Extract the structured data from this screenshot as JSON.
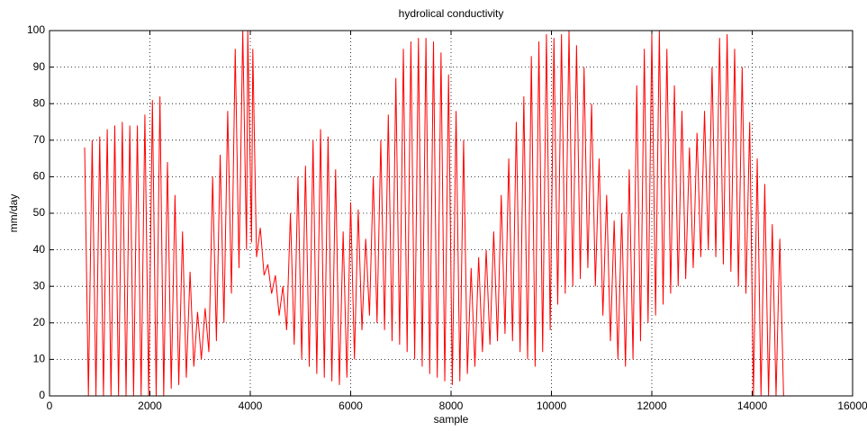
{
  "chart_data": {
    "type": "line",
    "title": "hydrolical conductivity",
    "xlabel": "sample",
    "ylabel": "mm/day",
    "color": "#ff0000",
    "grid": true,
    "xlim": [
      0,
      16000
    ],
    "xticks": [
      0,
      2000,
      4000,
      6000,
      8000,
      10000,
      12000,
      14000,
      16000
    ],
    "ylim": [
      0,
      100
    ],
    "yticks": [
      0,
      10,
      20,
      30,
      40,
      50,
      60,
      70,
      80,
      90,
      100
    ],
    "x": [
      700,
      775,
      850,
      925,
      1000,
      1075,
      1150,
      1225,
      1300,
      1375,
      1450,
      1525,
      1600,
      1675,
      1750,
      1825,
      1900,
      1975,
      2050,
      2125,
      2200,
      2275,
      2350,
      2425,
      2500,
      2575,
      2650,
      2725,
      2800,
      2875,
      2950,
      3025,
      3100,
      3175,
      3250,
      3325,
      3400,
      3475,
      3550,
      3625,
      3700,
      3775,
      3850,
      3925,
      3950,
      4025,
      4050,
      4125,
      4200,
      4275,
      4350,
      4425,
      4500,
      4575,
      4650,
      4725,
      4800,
      4875,
      4950,
      5025,
      5100,
      5175,
      5250,
      5325,
      5400,
      5475,
      5550,
      5625,
      5700,
      5775,
      5850,
      5925,
      6000,
      6075,
      6150,
      6225,
      6300,
      6375,
      6450,
      6525,
      6600,
      6675,
      6750,
      6825,
      6900,
      6975,
      7050,
      7125,
      7200,
      7275,
      7350,
      7425,
      7500,
      7575,
      7650,
      7725,
      7800,
      7875,
      7950,
      8025,
      8100,
      8175,
      8250,
      8325,
      8400,
      8475,
      8550,
      8625,
      8700,
      8775,
      8850,
      8925,
      9000,
      9075,
      9150,
      9225,
      9300,
      9375,
      9450,
      9525,
      9600,
      9675,
      9750,
      9825,
      9900,
      9975,
      10050,
      10125,
      10200,
      10275,
      10350,
      10425,
      10500,
      10575,
      10650,
      10725,
      10800,
      10875,
      10950,
      11025,
      11100,
      11175,
      11250,
      11325,
      11400,
      11475,
      11550,
      11625,
      11700,
      11775,
      11850,
      11925,
      12000,
      12075,
      12150,
      12225,
      12300,
      12375,
      12450,
      12525,
      12600,
      12675,
      12750,
      12825,
      12900,
      12975,
      13050,
      13125,
      13200,
      13275,
      13350,
      13425,
      13500,
      13575,
      13650,
      13725,
      13800,
      13875,
      13950,
      14025,
      14100,
      14175,
      14250,
      14325,
      14400,
      14475,
      14550,
      14625
    ],
    "values": [
      68,
      0,
      70,
      0,
      71,
      0,
      73,
      0,
      74,
      0,
      75,
      0,
      74,
      0,
      74,
      0,
      77,
      0,
      81,
      0,
      82,
      0,
      64,
      2,
      55,
      3,
      45,
      5,
      34,
      8,
      23,
      10,
      24,
      12,
      60,
      15,
      66,
      20,
      78,
      28,
      95,
      35,
      100,
      40,
      100,
      42,
      95,
      38,
      46,
      33,
      36,
      28,
      33,
      22,
      30,
      18,
      50,
      14,
      60,
      10,
      63,
      8,
      70,
      6,
      73,
      5,
      71,
      4,
      62,
      3,
      45,
      5,
      53,
      10,
      51,
      18,
      43,
      22,
      60,
      20,
      70,
      18,
      77,
      15,
      87,
      14,
      95,
      12,
      97,
      10,
      98,
      8,
      98,
      6,
      97,
      5,
      94,
      4,
      88,
      3,
      78,
      4,
      70,
      6,
      35,
      8,
      38,
      12,
      40,
      14,
      45,
      15,
      55,
      17,
      65,
      15,
      75,
      12,
      82,
      10,
      93,
      8,
      97,
      12,
      99,
      18,
      98,
      25,
      99,
      28,
      100,
      30,
      96,
      32,
      90,
      35,
      80,
      30,
      65,
      22,
      55,
      15,
      48,
      10,
      50,
      8,
      62,
      10,
      85,
      15,
      95,
      20,
      99,
      22,
      100,
      25,
      95,
      28,
      85,
      30,
      78,
      32,
      68,
      35,
      72,
      38,
      78,
      40,
      90,
      38,
      98,
      36,
      99,
      34,
      95,
      30,
      90,
      28,
      75,
      0,
      65,
      0,
      58,
      0,
      47,
      0,
      43,
      0
    ]
  }
}
